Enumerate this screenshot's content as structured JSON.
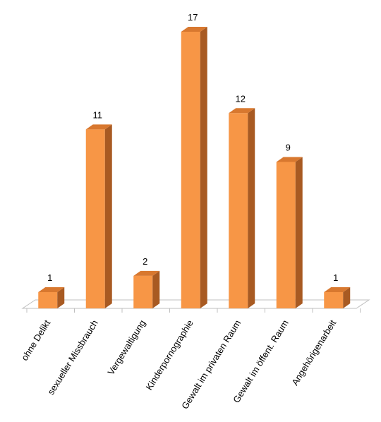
{
  "chart_data": {
    "type": "bar3d",
    "categories": [
      "ohne Delikt",
      "sexueller Missbrauch",
      "Vergewaltigung",
      "Kinderpornographie",
      "Gewalt im privaten Raum",
      "Gewalt im öffent. Raum",
      "Angehörigenarbeit"
    ],
    "values": [
      1,
      11,
      2,
      17,
      12,
      9,
      1
    ],
    "color": "#f79646"
  }
}
